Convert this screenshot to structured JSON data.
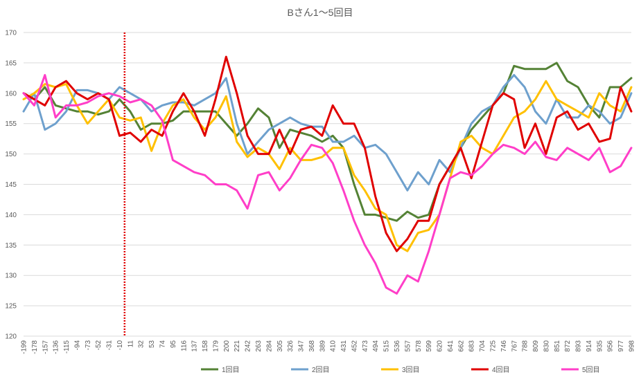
{
  "chart_data": {
    "type": "line",
    "title": "Bさん1～5回目",
    "ylim": [
      120,
      170
    ],
    "y_ticks": [
      120,
      125,
      130,
      135,
      140,
      145,
      150,
      155,
      160,
      165,
      170
    ],
    "xlim": [
      -199,
      998
    ],
    "x_tick_labels": [
      -199,
      -178,
      -157,
      -136,
      -115,
      -94,
      -73,
      -52,
      -31,
      -10,
      11,
      32,
      53,
      74,
      95,
      116,
      137,
      158,
      179,
      200,
      221,
      242,
      263,
      284,
      305,
      326,
      347,
      368,
      389,
      410,
      431,
      452,
      473,
      494,
      515,
      536,
      557,
      578,
      599,
      620,
      641,
      662,
      683,
      704,
      725,
      746,
      767,
      788,
      809,
      830,
      851,
      872,
      893,
      914,
      935,
      956,
      977,
      998
    ],
    "marker_line": {
      "x": 0,
      "color": "#e00000",
      "style": "dotted"
    },
    "grid": true,
    "legend_position": "bottom",
    "series": [
      {
        "name": "1回目",
        "color": "#548235",
        "x": [
          -199,
          -178,
          -157,
          -136,
          -115,
          -94,
          -73,
          -52,
          -31,
          -10,
          11,
          32,
          53,
          74,
          95,
          116,
          137,
          158,
          179,
          200,
          221,
          242,
          263,
          284,
          305,
          326,
          347,
          368,
          389,
          410,
          431,
          452,
          473,
          494,
          515,
          536,
          557,
          578,
          599,
          620,
          641,
          662,
          683,
          704,
          725,
          746,
          767,
          788,
          809,
          830,
          851,
          872,
          893,
          914,
          935,
          956,
          977,
          998
        ],
        "values": [
          160,
          159,
          161,
          158,
          157.5,
          157,
          157,
          156.5,
          157,
          159,
          157,
          154,
          155,
          155,
          155.5,
          157,
          157,
          157,
          157,
          155,
          153,
          155,
          157.5,
          156,
          151,
          154,
          153.5,
          153,
          152,
          153,
          151,
          145,
          140,
          140,
          139.5,
          139,
          140.5,
          139.5,
          140,
          145,
          148,
          151,
          154,
          156,
          158,
          160,
          164.5,
          164,
          164,
          164,
          165,
          162,
          161,
          158,
          156,
          161,
          161,
          162.5
        ]
      },
      {
        "name": "2回目",
        "color": "#6ea0cd",
        "x": [
          -199,
          -178,
          -157,
          -136,
          -115,
          -94,
          -73,
          -52,
          -31,
          -10,
          11,
          32,
          53,
          74,
          95,
          116,
          137,
          158,
          179,
          200,
          221,
          242,
          263,
          284,
          305,
          326,
          347,
          368,
          389,
          410,
          431,
          452,
          473,
          494,
          515,
          536,
          557,
          578,
          599,
          620,
          641,
          662,
          683,
          704,
          725,
          746,
          767,
          788,
          809,
          830,
          851,
          872,
          893,
          914,
          935,
          956,
          977,
          998
        ],
        "values": [
          157,
          160,
          154,
          155,
          157,
          160.5,
          160.5,
          160,
          159,
          161,
          160,
          159,
          157,
          158,
          158.5,
          158.5,
          158,
          159,
          160,
          162.5,
          155,
          150,
          152,
          154,
          155,
          156,
          155,
          154.5,
          154.5,
          152,
          152,
          153,
          151,
          151.5,
          150,
          147,
          144,
          147,
          145,
          149,
          147,
          151,
          155,
          157,
          158,
          161,
          163,
          161,
          157,
          155,
          159,
          156,
          156,
          158,
          157,
          155,
          156,
          160
        ]
      },
      {
        "name": "3回目",
        "color": "#ffc000",
        "x": [
          -199,
          -178,
          -157,
          -136,
          -115,
          -94,
          -73,
          -52,
          -31,
          -10,
          11,
          32,
          53,
          74,
          95,
          116,
          137,
          158,
          179,
          200,
          221,
          242,
          263,
          284,
          305,
          326,
          347,
          368,
          389,
          410,
          431,
          452,
          473,
          494,
          515,
          536,
          557,
          578,
          599,
          620,
          641,
          662,
          683,
          704,
          725,
          746,
          767,
          788,
          809,
          830,
          851,
          872,
          893,
          914,
          935,
          956,
          977,
          998
        ],
        "values": [
          159,
          160,
          161.5,
          161,
          161.5,
          158,
          155,
          157,
          159,
          156,
          155.5,
          156,
          150.5,
          155,
          158,
          159,
          156,
          154,
          156,
          159.5,
          152,
          149.5,
          151,
          150,
          147.5,
          151,
          149,
          149,
          149.5,
          151,
          151,
          146.5,
          144,
          141,
          140,
          135,
          134,
          137,
          137.5,
          140,
          146,
          152,
          153,
          151,
          150,
          153,
          156,
          157,
          159,
          162,
          159,
          158,
          157,
          156,
          160,
          158,
          157,
          161
        ]
      },
      {
        "name": "4回目",
        "color": "#e00000",
        "x": [
          -199,
          -178,
          -157,
          -136,
          -115,
          -94,
          -73,
          -52,
          -31,
          -10,
          11,
          32,
          53,
          74,
          95,
          116,
          137,
          158,
          179,
          200,
          221,
          242,
          263,
          284,
          305,
          326,
          347,
          368,
          389,
          410,
          431,
          452,
          473,
          494,
          515,
          536,
          557,
          578,
          599,
          620,
          641,
          662,
          683,
          704,
          725,
          746,
          767,
          788,
          809,
          830,
          851,
          872,
          893,
          914,
          935,
          956,
          977,
          998
        ],
        "values": [
          160,
          159,
          158,
          161,
          162,
          160,
          159,
          160,
          159,
          153,
          153.5,
          152,
          154,
          153,
          157,
          160,
          157,
          153,
          159,
          166,
          160,
          153,
          150,
          150,
          154,
          150,
          154,
          154.5,
          153,
          158,
          155,
          155,
          151,
          143,
          137,
          134,
          136,
          139,
          139,
          145,
          148,
          151,
          146,
          152,
          158,
          160,
          159,
          151,
          155,
          150,
          156,
          157,
          154,
          155,
          152,
          152.5,
          161,
          157
        ]
      },
      {
        "name": "5回目",
        "color": "#ff3ec8",
        "x": [
          -199,
          -178,
          -157,
          -136,
          -115,
          -94,
          -73,
          -52,
          -31,
          -10,
          11,
          32,
          53,
          74,
          95,
          116,
          137,
          158,
          179,
          200,
          221,
          242,
          263,
          284,
          305,
          326,
          347,
          368,
          389,
          410,
          431,
          452,
          473,
          494,
          515,
          536,
          557,
          578,
          599,
          620,
          641,
          662,
          683,
          704,
          725,
          746,
          767,
          788,
          809,
          830,
          851,
          872,
          893,
          914,
          935,
          956,
          977,
          998
        ],
        "values": [
          160,
          158,
          163,
          156,
          158,
          158,
          158.5,
          159.5,
          160,
          159.5,
          158.5,
          159,
          158,
          155.5,
          149,
          148,
          147,
          146.5,
          145,
          145,
          144,
          141,
          146.5,
          147,
          144,
          146,
          149,
          151.5,
          151,
          148.5,
          144,
          139,
          135,
          132,
          128,
          127,
          130,
          129,
          134,
          140,
          146,
          147,
          146.5,
          148,
          150,
          151.5,
          151,
          150,
          152,
          149.5,
          149,
          151,
          150,
          149,
          151,
          147,
          148,
          151
        ]
      }
    ]
  }
}
